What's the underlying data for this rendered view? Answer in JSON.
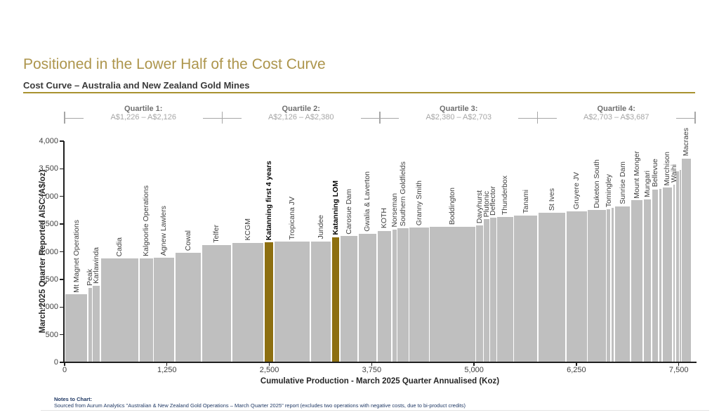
{
  "slide": {
    "title": "Positioned in the Lower Half of the Cost Curve",
    "subtitle": "Cost Curve – Australia and New Zealand Gold Mines",
    "notes_heading": "Notes to Chart:",
    "notes_body": "Sourced from Aurum Analytics \"Australian & New Zealand Gold Operations – March Quarter 2025\" report (excludes two operations with negative costs, due to bi-product credits)"
  },
  "quartiles": [
    {
      "label": "Quartile 1:",
      "range": "A$1,226 – A$2,126"
    },
    {
      "label": "Quartile 2:",
      "range": "A$2,126 – A$2,380"
    },
    {
      "label": "Quartile 3:",
      "range": "A$2,380 – A$2,703"
    },
    {
      "label": "Quartile 4:",
      "range": "A$2,703 – A$3,687"
    }
  ],
  "chart_data": {
    "type": "bar",
    "variant": "variable-width-cost-curve",
    "title": "Cost Curve – Australia and New Zealand Gold Mines",
    "xlabel": "Cumulative Production - March 2025 Quarter Annualised (Koz)",
    "ylabel": "March 2025 Quarter Reported AISC (A$/oz)",
    "xlim": [
      0,
      7700
    ],
    "ylim": [
      0,
      4000
    ],
    "grid": false,
    "legend": false,
    "bar_color": "#bfbfbf",
    "highlight_color": "#8d6f10",
    "x_ticks": [
      {
        "value": 0,
        "label": "0"
      },
      {
        "value": 1250,
        "label": "1,250"
      },
      {
        "value": 2500,
        "label": "2,500"
      },
      {
        "value": 3750,
        "label": "3,750"
      },
      {
        "value": 5000,
        "label": "5,000"
      },
      {
        "value": 6250,
        "label": "6,250"
      },
      {
        "value": 7500,
        "label": "7,500"
      }
    ],
    "y_ticks": [
      {
        "value": 0,
        "label": "0"
      },
      {
        "value": 500,
        "label": "500"
      },
      {
        "value": 1000,
        "label": "1,000"
      },
      {
        "value": 1500,
        "label": "1,500"
      },
      {
        "value": 2000,
        "label": "2,000"
      },
      {
        "value": 2500,
        "label": "2,500"
      },
      {
        "value": 3000,
        "label": "3,000"
      },
      {
        "value": 3500,
        "label": "3,500"
      },
      {
        "value": 4000,
        "label": "4,000"
      }
    ],
    "mines": [
      {
        "name": "Mt Magnet Operations",
        "aisc": 1226,
        "production_koz": 283,
        "highlight": false
      },
      {
        "name": "Peak",
        "aisc": 1350,
        "production_koz": 55,
        "highlight": false
      },
      {
        "name": "Karlawinda",
        "aisc": 1390,
        "production_koz": 100,
        "highlight": false
      },
      {
        "name": "Cadia",
        "aisc": 1880,
        "production_koz": 470,
        "highlight": false
      },
      {
        "name": "Kalgoorlie Operations",
        "aisc": 1885,
        "production_koz": 176,
        "highlight": false
      },
      {
        "name": "Agnew Lawlers",
        "aisc": 1890,
        "production_koz": 258,
        "highlight": false
      },
      {
        "name": "Cowal",
        "aisc": 1985,
        "production_koz": 330,
        "highlight": false
      },
      {
        "name": "Telfer",
        "aisc": 2126,
        "production_koz": 365,
        "highlight": false
      },
      {
        "name": "KCGM",
        "aisc": 2160,
        "production_koz": 395,
        "highlight": false
      },
      {
        "name": "Katanning first 4 years",
        "aisc": 2170,
        "production_koz": 120,
        "highlight": true
      },
      {
        "name": "Tropicana JV",
        "aisc": 2180,
        "production_koz": 445,
        "highlight": false
      },
      {
        "name": "Jundee",
        "aisc": 2190,
        "production_koz": 258,
        "highlight": false
      },
      {
        "name": "Katanning LOM",
        "aisc": 2260,
        "production_koz": 108,
        "highlight": true
      },
      {
        "name": "Carosue Dam",
        "aisc": 2280,
        "production_koz": 219,
        "highlight": false
      },
      {
        "name": "Gwalia & Laverton",
        "aisc": 2330,
        "production_koz": 230,
        "highlight": false
      },
      {
        "name": "KOTH",
        "aisc": 2380,
        "production_koz": 183,
        "highlight": false
      },
      {
        "name": "Norseman",
        "aisc": 2405,
        "production_koz": 65,
        "highlight": false
      },
      {
        "name": "Southern Goldfields",
        "aisc": 2420,
        "production_koz": 145,
        "highlight": false
      },
      {
        "name": "Granny Smith",
        "aisc": 2435,
        "production_koz": 248,
        "highlight": false
      },
      {
        "name": "Boddington",
        "aisc": 2455,
        "production_koz": 565,
        "highlight": false
      },
      {
        "name": "Davyhurst",
        "aisc": 2470,
        "production_koz": 95,
        "highlight": false
      },
      {
        "name": "Plutonic",
        "aisc": 2585,
        "production_koz": 78,
        "highlight": false
      },
      {
        "name": "Deflector",
        "aisc": 2610,
        "production_koz": 85,
        "highlight": false
      },
      {
        "name": "Thunderbox",
        "aisc": 2630,
        "production_koz": 207,
        "highlight": false
      },
      {
        "name": "Tanami",
        "aisc": 2650,
        "production_koz": 295,
        "highlight": false
      },
      {
        "name": "St Ives",
        "aisc": 2703,
        "production_koz": 340,
        "highlight": false
      },
      {
        "name": "Gruyere JV",
        "aisc": 2735,
        "production_koz": 265,
        "highlight": false
      },
      {
        "name": "Duketon South",
        "aisc": 2750,
        "production_koz": 232,
        "highlight": false
      },
      {
        "name": "Tomingley",
        "aisc": 2770,
        "production_koz": 55,
        "highlight": false
      },
      {
        "name": "",
        "aisc": 2800,
        "production_koz": 45,
        "highlight": false
      },
      {
        "name": "Sunrise Dam",
        "aisc": 2820,
        "production_koz": 197,
        "highlight": false
      },
      {
        "name": "Mount Monger",
        "aisc": 2930,
        "production_koz": 150,
        "highlight": false
      },
      {
        "name": "Mungari",
        "aisc": 2945,
        "production_koz": 103,
        "highlight": false
      },
      {
        "name": "Bellevue",
        "aisc": 3130,
        "production_koz": 88,
        "highlight": false
      },
      {
        "name": "",
        "aisc": 3140,
        "production_koz": 40,
        "highlight": false
      },
      {
        "name": "Murchison",
        "aisc": 3160,
        "production_koz": 130,
        "highlight": false
      },
      {
        "name": "Waihi",
        "aisc": 3215,
        "production_koz": 38,
        "highlight": false
      },
      {
        "name": "",
        "aisc": 3450,
        "production_koz": 45,
        "highlight": false
      },
      {
        "name": "",
        "aisc": 3480,
        "production_koz": 22,
        "highlight": false
      },
      {
        "name": "Macraes",
        "aisc": 3687,
        "production_koz": 125,
        "highlight": false
      }
    ]
  },
  "colors": {
    "title_gold": "#ad954c",
    "rule_gold": "#a8922f",
    "bar_gray": "#bfbfbf",
    "highlight_gold": "#8d6f10",
    "bracket_gray": "#a6a6a6",
    "notes_navy": "#1f3864",
    "axis_text": "#262626",
    "mine_label_gray": "#3f3f3f"
  }
}
